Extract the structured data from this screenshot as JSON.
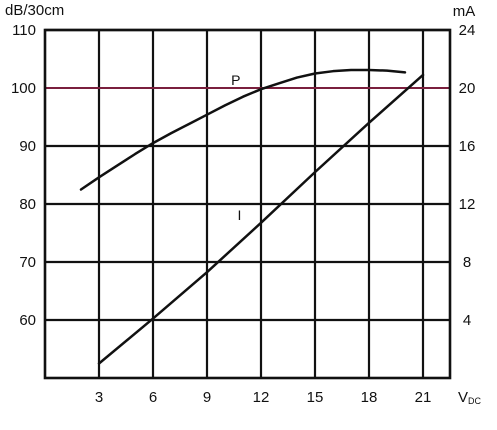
{
  "chart_data": {
    "type": "line",
    "left_unit": "dB/30cm",
    "right_unit": "mA",
    "x_unit": "Vdc",
    "x_unit_main": "V",
    "x_unit_sub": "DC",
    "x_ticks": [
      "3",
      "6",
      "9",
      "12",
      "15",
      "18",
      "21"
    ],
    "y_left_ticks": [
      "110",
      "100",
      "90",
      "80",
      "70",
      "60"
    ],
    "y_right_ticks": [
      "24",
      "20",
      "16",
      "12",
      "8",
      "4"
    ],
    "x_range": [
      0,
      22.5
    ],
    "y_left_range": [
      50,
      110
    ],
    "y_right_range": [
      0,
      24
    ],
    "grid": true,
    "highlight_line": {
      "axis": "left",
      "value": 100,
      "color": "#7a1f3d"
    },
    "series": [
      {
        "name": "P",
        "axis": "left",
        "x": [
          2.0,
          3.0,
          4.0,
          5.0,
          6.0,
          7.0,
          8.0,
          9.0,
          10.0,
          11.0,
          12.0,
          13.0,
          14.0,
          15.0,
          16.0,
          17.0,
          18.0,
          19.0,
          20.0
        ],
        "values": [
          82.5,
          84.6,
          86.6,
          88.6,
          90.5,
          92.2,
          93.8,
          95.4,
          97.0,
          98.5,
          99.8,
          100.8,
          101.8,
          102.5,
          102.9,
          103.1,
          103.1,
          103.0,
          102.7
        ]
      },
      {
        "name": "I",
        "axis": "right",
        "x": [
          3.0,
          6.0,
          9.0,
          12.0,
          15.0,
          18.0,
          21.0
        ],
        "values": [
          1.0,
          4.1,
          7.3,
          10.7,
          14.2,
          17.6,
          20.9
        ]
      }
    ],
    "series_labels": [
      "P",
      "I"
    ],
    "colors": {
      "axis": "#111111",
      "grid": "#111111",
      "series": "#111111"
    }
  }
}
